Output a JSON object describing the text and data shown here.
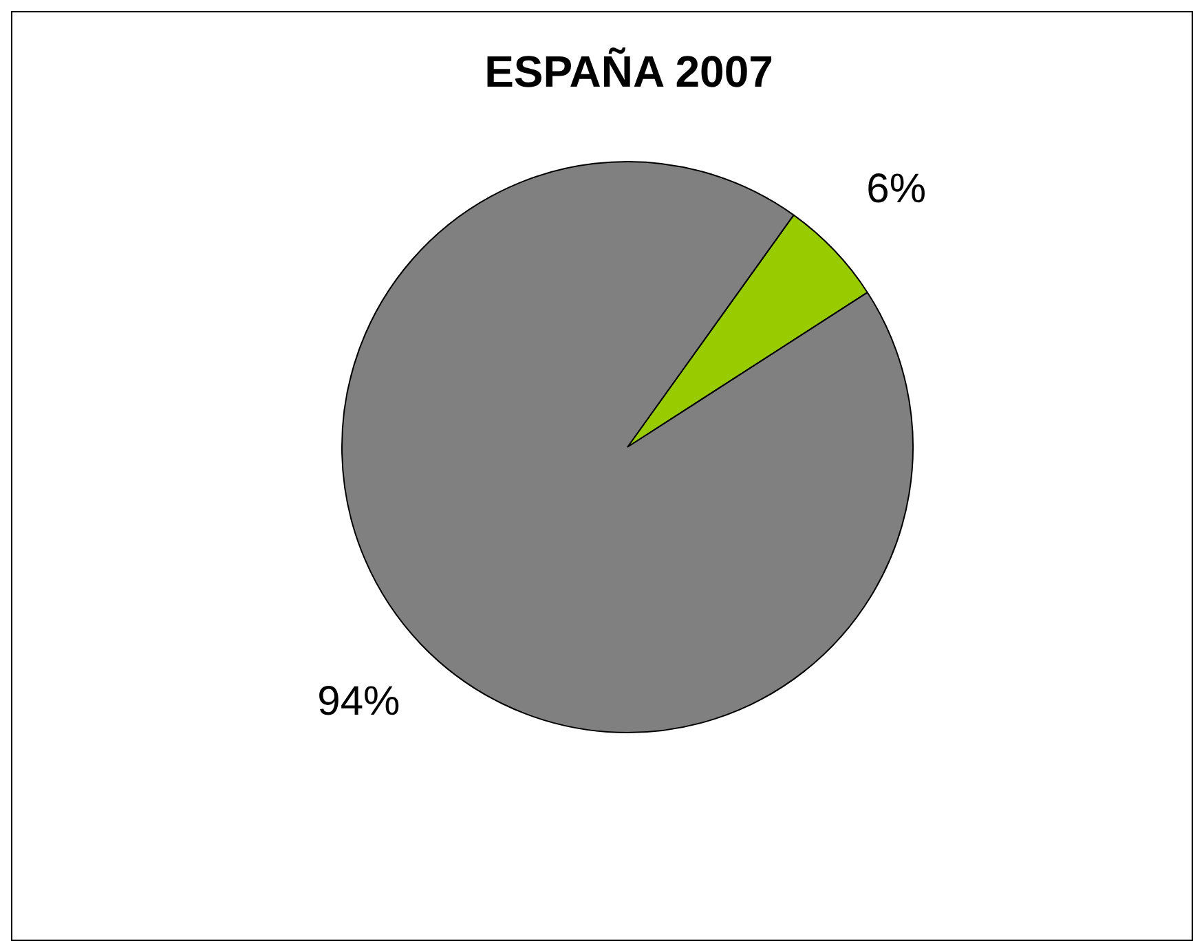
{
  "chart_data": {
    "type": "pie",
    "title": "ESPAÑA 2007",
    "categories": [
      null,
      null
    ],
    "values": [
      6,
      94
    ],
    "colors": [
      "#99cc00",
      "#808080"
    ],
    "value_labels": [
      "6%",
      "94%"
    ],
    "legend": false
  }
}
